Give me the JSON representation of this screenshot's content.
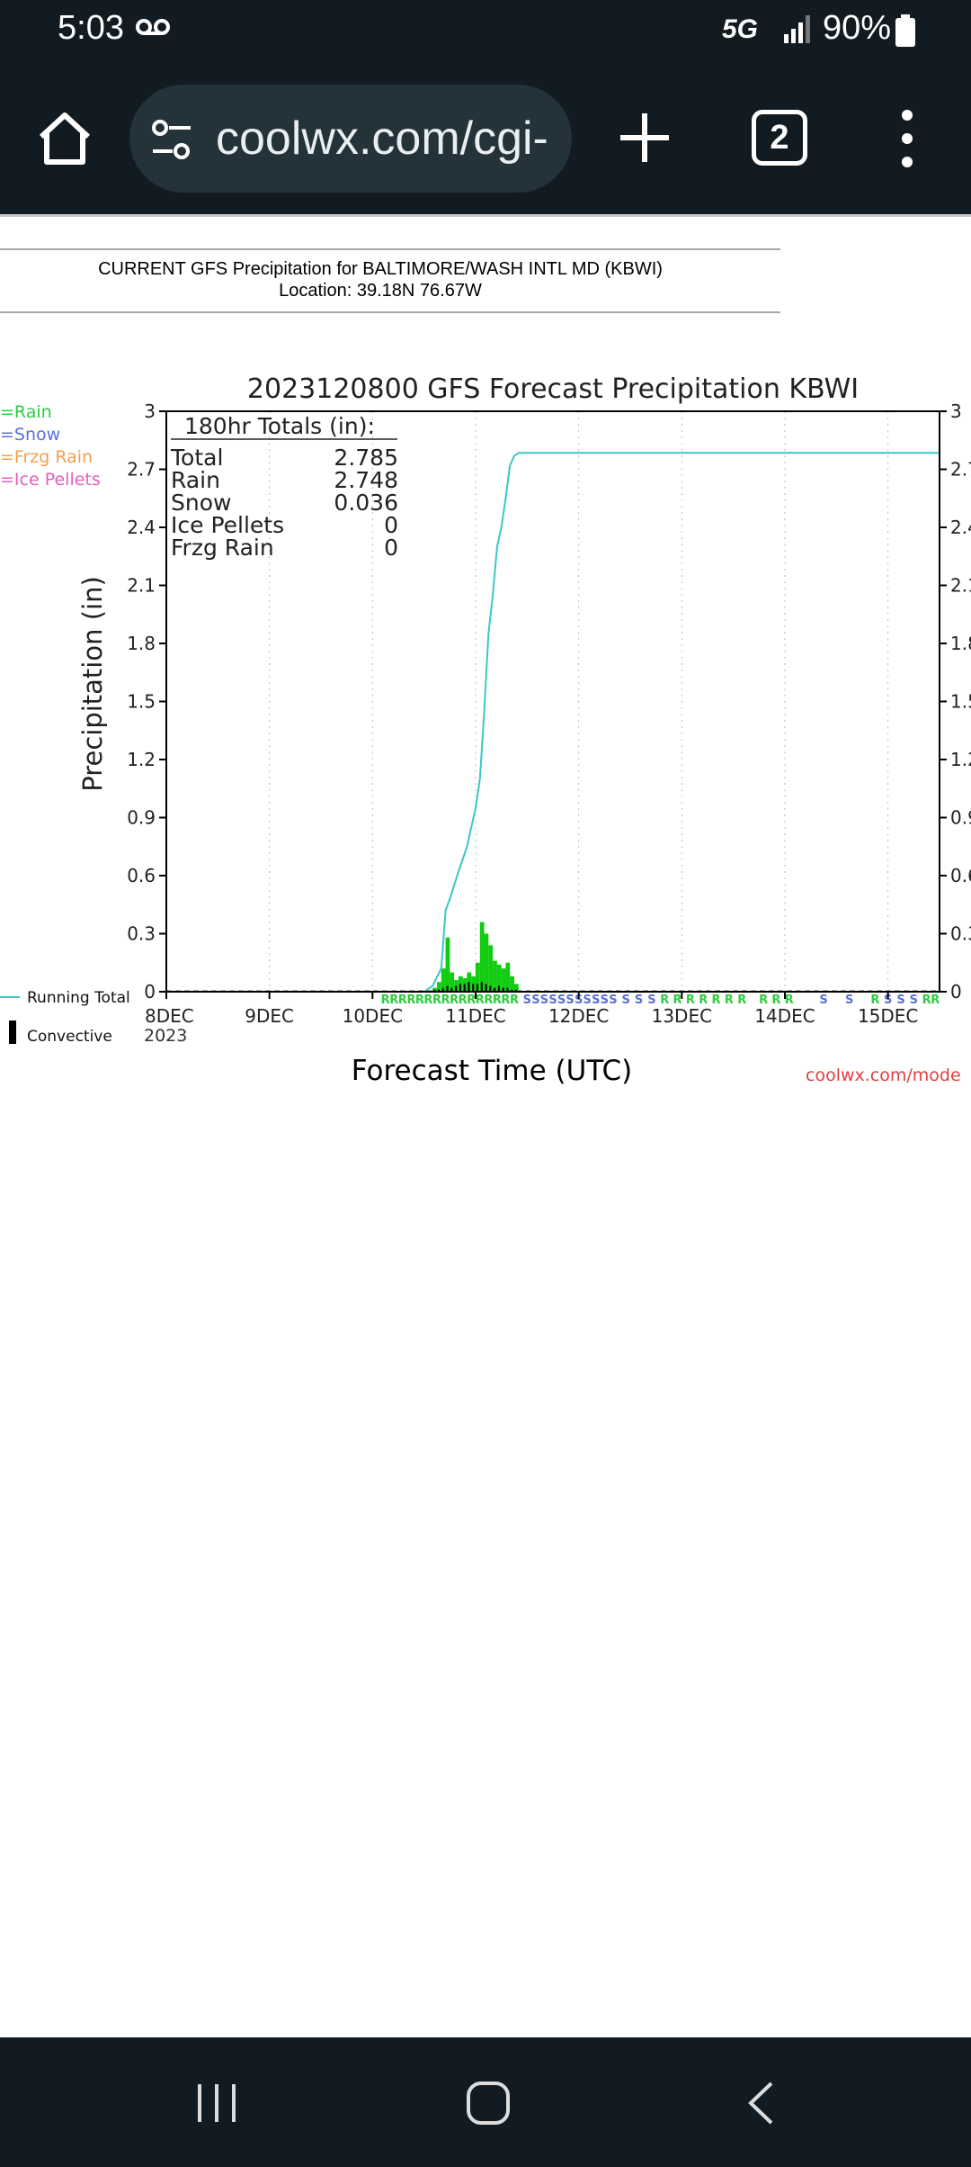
{
  "status_bar": {
    "time": "5:03",
    "network": "5G",
    "battery": "90%"
  },
  "browser": {
    "url": "coolwx.com/cgi-",
    "tab_count": "2"
  },
  "page_header": {
    "title": "CURRENT GFS Precipitation for BALTIMORE/WASH INTL MD (KBWI)",
    "location": "Location: 39.18N 76.67W"
  },
  "chart_data": {
    "type": "bar",
    "title": "2023120800 GFS Forecast Precipitation KBWI",
    "xlabel": "Forecast Time (UTC)",
    "ylabel": "Precipitation (in)",
    "ylim": [
      0,
      3
    ],
    "xlim_hours": [
      0,
      180
    ],
    "y_ticks": [
      "0",
      "0.3",
      "0.6",
      "0.9",
      "1.2",
      "1.5",
      "1.8",
      "2.1",
      "2.4",
      "2.7",
      "3"
    ],
    "x_ticks": [
      {
        "hour": 0,
        "label": "8DEC"
      },
      {
        "hour": 24,
        "label": "9DEC"
      },
      {
        "hour": 48,
        "label": "10DEC"
      },
      {
        "hour": 72,
        "label": "11DEC"
      },
      {
        "hour": 96,
        "label": "12DEC"
      },
      {
        "hour": 120,
        "label": "13DEC"
      },
      {
        "hour": 144,
        "label": "14DEC"
      },
      {
        "hour": 168,
        "label": "15DEC"
      }
    ],
    "year_label": "2023",
    "grid": "vertical dotted at day boundaries",
    "legend": [
      {
        "name": "=Rain",
        "color": "#2ecc40"
      },
      {
        "name": "=Snow",
        "color": "#5a6fd8"
      },
      {
        "name": "=Frzg Rain",
        "color": "#f0a050"
      },
      {
        "name": "=Ice Pellets",
        "color": "#e060c0"
      }
    ],
    "line_legend": [
      {
        "name": "Running Total",
        "color": "#3cc6c6"
      },
      {
        "name": "Convective",
        "color": "#000000"
      }
    ],
    "totals_box": {
      "header": "180hr Totals (in):",
      "rows": [
        {
          "label": "Total",
          "value": "2.785"
        },
        {
          "label": "Rain",
          "value": "2.748"
        },
        {
          "label": "Snow",
          "value": "0.036"
        },
        {
          "label": "Ice Pellets",
          "value": "0"
        },
        {
          "label": "Frzg Rain",
          "value": "0"
        }
      ]
    },
    "rain_bars": {
      "start_hour": 62,
      "step_hours": 1,
      "values": [
        0.02,
        0.05,
        0.12,
        0.28,
        0.1,
        0.06,
        0.08,
        0.07,
        0.1,
        0.08,
        0.15,
        0.36,
        0.3,
        0.24,
        0.16,
        0.14,
        0.12,
        0.15,
        0.08,
        0.04
      ]
    },
    "convective_bars": {
      "start_hour": 62,
      "step_hours": 1,
      "values": [
        0.01,
        0.01,
        0.02,
        0.03,
        0.02,
        0.03,
        0.04,
        0.04,
        0.05,
        0.04,
        0.04,
        0.05,
        0.04,
        0.03,
        0.02,
        0.03,
        0.02,
        0.02,
        0.01,
        0.01
      ]
    },
    "running_total": {
      "x": [
        0,
        60,
        62,
        64,
        65,
        66,
        68,
        70,
        71,
        72,
        73,
        74,
        75,
        76,
        77,
        78,
        79,
        80,
        81,
        82,
        180
      ],
      "y": [
        0,
        0,
        0.03,
        0.12,
        0.42,
        0.48,
        0.62,
        0.75,
        0.85,
        0.95,
        1.1,
        1.45,
        1.85,
        2.05,
        2.3,
        2.4,
        2.55,
        2.72,
        2.77,
        2.785,
        2.785
      ]
    },
    "ptype_marks": [
      {
        "hour": 51,
        "symbol": "R",
        "color": "#2ecc40"
      },
      {
        "hour": 53,
        "symbol": "R",
        "color": "#2ecc40"
      },
      {
        "hour": 55,
        "symbol": "R",
        "color": "#2ecc40"
      },
      {
        "hour": 57,
        "symbol": "R",
        "color": "#2ecc40"
      },
      {
        "hour": 59,
        "symbol": "R",
        "color": "#2ecc40"
      },
      {
        "hour": 61,
        "symbol": "R",
        "color": "#2ecc40"
      },
      {
        "hour": 63,
        "symbol": "R",
        "color": "#2ecc40"
      },
      {
        "hour": 65,
        "symbol": "R",
        "color": "#2ecc40"
      },
      {
        "hour": 67,
        "symbol": "R",
        "color": "#2ecc40"
      },
      {
        "hour": 69,
        "symbol": "R",
        "color": "#2ecc40"
      },
      {
        "hour": 71,
        "symbol": "R",
        "color": "#2ecc40"
      },
      {
        "hour": 73,
        "symbol": "R",
        "color": "#2ecc40"
      },
      {
        "hour": 75,
        "symbol": "R",
        "color": "#2ecc40"
      },
      {
        "hour": 77,
        "symbol": "R",
        "color": "#2ecc40"
      },
      {
        "hour": 79,
        "symbol": "R",
        "color": "#2ecc40"
      },
      {
        "hour": 81,
        "symbol": "R",
        "color": "#2ecc40"
      },
      {
        "hour": 84,
        "symbol": "S",
        "color": "#5a6fd8"
      },
      {
        "hour": 86,
        "symbol": "S",
        "color": "#5a6fd8"
      },
      {
        "hour": 88,
        "symbol": "S",
        "color": "#5a6fd8"
      },
      {
        "hour": 90,
        "symbol": "S",
        "color": "#5a6fd8"
      },
      {
        "hour": 92,
        "symbol": "S",
        "color": "#5a6fd8"
      },
      {
        "hour": 94,
        "symbol": "S",
        "color": "#5a6fd8"
      },
      {
        "hour": 96,
        "symbol": "S",
        "color": "#5a6fd8"
      },
      {
        "hour": 98,
        "symbol": "S",
        "color": "#5a6fd8"
      },
      {
        "hour": 100,
        "symbol": "S",
        "color": "#5a6fd8"
      },
      {
        "hour": 102,
        "symbol": "S",
        "color": "#5a6fd8"
      },
      {
        "hour": 104,
        "symbol": "S",
        "color": "#5a6fd8"
      },
      {
        "hour": 107,
        "symbol": "S",
        "color": "#5a6fd8"
      },
      {
        "hour": 110,
        "symbol": "S",
        "color": "#5a6fd8"
      },
      {
        "hour": 113,
        "symbol": "S",
        "color": "#5a6fd8"
      },
      {
        "hour": 116,
        "symbol": "R",
        "color": "#2ecc40"
      },
      {
        "hour": 119,
        "symbol": "R",
        "color": "#2ecc40"
      },
      {
        "hour": 122,
        "symbol": "R",
        "color": "#2ecc40"
      },
      {
        "hour": 125,
        "symbol": "R",
        "color": "#2ecc40"
      },
      {
        "hour": 128,
        "symbol": "R",
        "color": "#2ecc40"
      },
      {
        "hour": 131,
        "symbol": "R",
        "color": "#2ecc40"
      },
      {
        "hour": 134,
        "symbol": "R",
        "color": "#2ecc40"
      },
      {
        "hour": 139,
        "symbol": "R",
        "color": "#2ecc40"
      },
      {
        "hour": 142,
        "symbol": "R",
        "color": "#2ecc40"
      },
      {
        "hour": 145,
        "symbol": "R",
        "color": "#2ecc40"
      },
      {
        "hour": 153,
        "symbol": "S",
        "color": "#5a6fd8"
      },
      {
        "hour": 159,
        "symbol": "S",
        "color": "#5a6fd8"
      },
      {
        "hour": 165,
        "symbol": "R",
        "color": "#2ecc40"
      },
      {
        "hour": 168,
        "symbol": "S",
        "color": "#5a6fd8"
      },
      {
        "hour": 171,
        "symbol": "S",
        "color": "#5a6fd8"
      },
      {
        "hour": 174,
        "symbol": "S",
        "color": "#5a6fd8"
      },
      {
        "hour": 177,
        "symbol": "R",
        "color": "#2ecc40"
      },
      {
        "hour": 179,
        "symbol": "R",
        "color": "#2ecc40"
      }
    ],
    "credit": "coolwx.com/mode"
  }
}
